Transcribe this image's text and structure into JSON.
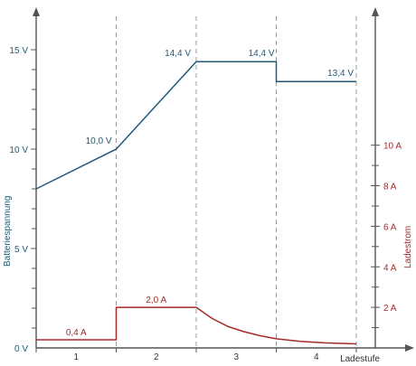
{
  "chart_data": {
    "type": "line",
    "x_stage_boundaries": [
      0,
      1,
      2,
      3,
      4
    ],
    "stage_labels": [
      "1",
      "2",
      "3",
      "4"
    ],
    "xlabel": "Ladestufe",
    "left_axis": {
      "label": "Batteriespannung",
      "ylim": [
        0,
        16
      ],
      "major_ticks": [
        0,
        5,
        10,
        15
      ],
      "tick_labels": [
        "0 V",
        "5 V",
        "10 V",
        "15 V"
      ],
      "color": "#1f5a7a"
    },
    "right_axis": {
      "label": "Ladestrom",
      "ylim": [
        0,
        15.6
      ],
      "major_ticks": [
        2,
        4,
        6,
        8,
        10
      ],
      "tick_labels": [
        "2 A",
        "4 A",
        "6 A",
        "8 A",
        "10 A"
      ],
      "color": "#a52a2a"
    },
    "series": [
      {
        "axis": "left",
        "x": [
          0,
          1,
          2,
          3,
          3,
          4
        ],
        "y": [
          8.0,
          10.0,
          14.4,
          14.4,
          13.4,
          13.4
        ],
        "color": "#1f5a7a"
      },
      {
        "axis": "right",
        "x": [
          0,
          1,
          1,
          2,
          2.2,
          2.4,
          2.6,
          2.8,
          3.0,
          3.3,
          3.6,
          4.0
        ],
        "y": [
          0.4,
          0.4,
          2.0,
          2.0,
          1.45,
          1.05,
          0.8,
          0.6,
          0.45,
          0.32,
          0.25,
          0.2
        ],
        "color": "#a52a2a"
      }
    ],
    "annotations": [
      {
        "axis": "left",
        "text": "10,0 V",
        "x": 1,
        "y": 10.0
      },
      {
        "axis": "left",
        "text": "14,4 V",
        "x": 2,
        "y": 14.4
      },
      {
        "axis": "left",
        "text": "14,4 V",
        "x": 3,
        "y": 14.4
      },
      {
        "axis": "left",
        "text": "13,4 V",
        "x": 4,
        "y": 13.4
      },
      {
        "axis": "right",
        "text": "0,4 A",
        "x": 0.5,
        "y": 0.4
      },
      {
        "axis": "right",
        "text": "2,0 A",
        "x": 1.5,
        "y": 2.0
      }
    ],
    "stage_dividers": [
      1,
      2,
      3,
      4
    ],
    "grid": false
  }
}
